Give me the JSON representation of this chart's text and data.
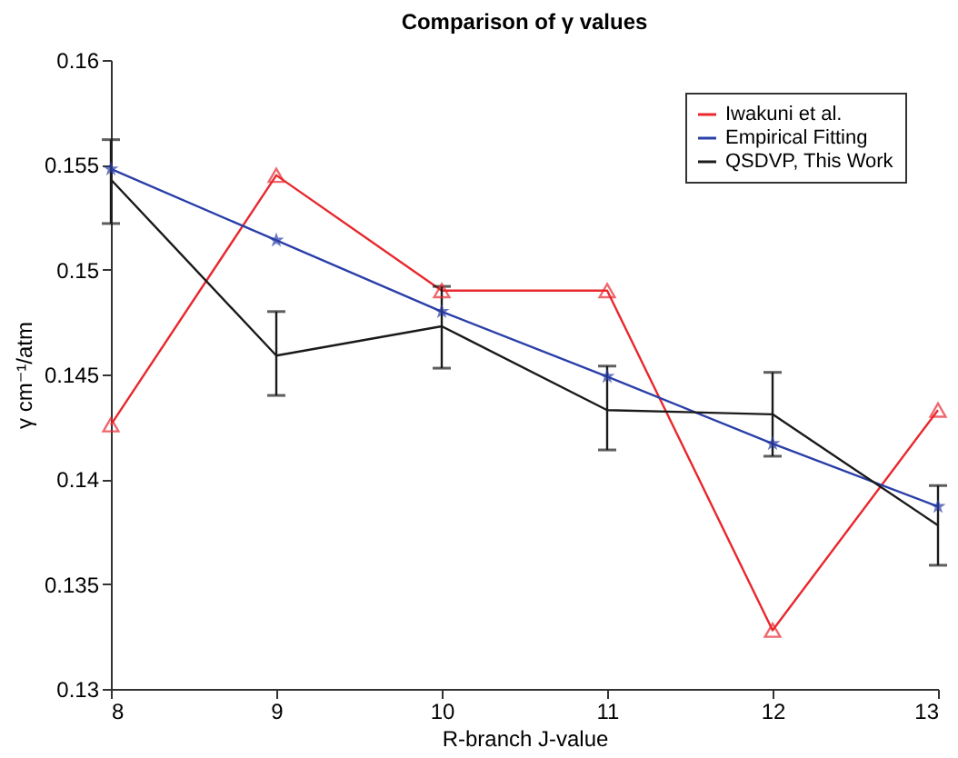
{
  "chart_data": {
    "type": "line",
    "title": "Comparison of γ values",
    "xlabel": "R-branch J-value",
    "ylabel": "γ cm⁻¹/atm",
    "x": [
      8,
      9,
      10,
      11,
      12,
      13
    ],
    "xlim": [
      8,
      13
    ],
    "xticks": [
      8,
      9,
      10,
      11,
      12,
      13
    ],
    "ylim": [
      0.13,
      0.16
    ],
    "yticks": [
      0.13,
      0.135,
      0.14,
      0.145,
      0.15,
      0.155,
      0.16
    ],
    "legend": "top right",
    "grid": false,
    "line_style": "solid",
    "series": [
      {
        "name": "Iwakuni et al.",
        "color": "#e8282e",
        "marker": "triangle",
        "values": [
          0.1426,
          0.1545,
          0.149,
          0.149,
          0.1328,
          0.1433
        ]
      },
      {
        "name": "Empirical Fitting",
        "color": "#2b3fa8",
        "marker": "star",
        "values": [
          0.1548,
          0.1514,
          0.148,
          0.1449,
          0.1417,
          0.1387
        ]
      },
      {
        "name": "QSDVP, This Work",
        "color": "#1a1a1a",
        "marker": "none",
        "values": [
          0.1543,
          0.1459,
          0.1473,
          0.1433,
          0.1431,
          0.1378
        ],
        "errors": [
          [
            0.1522,
            0.1562
          ],
          [
            0.144,
            0.148
          ],
          [
            0.1453,
            0.1492
          ],
          [
            0.1414,
            0.1454
          ],
          [
            0.1411,
            0.1451
          ],
          [
            0.1359,
            0.1397
          ]
        ]
      }
    ]
  }
}
